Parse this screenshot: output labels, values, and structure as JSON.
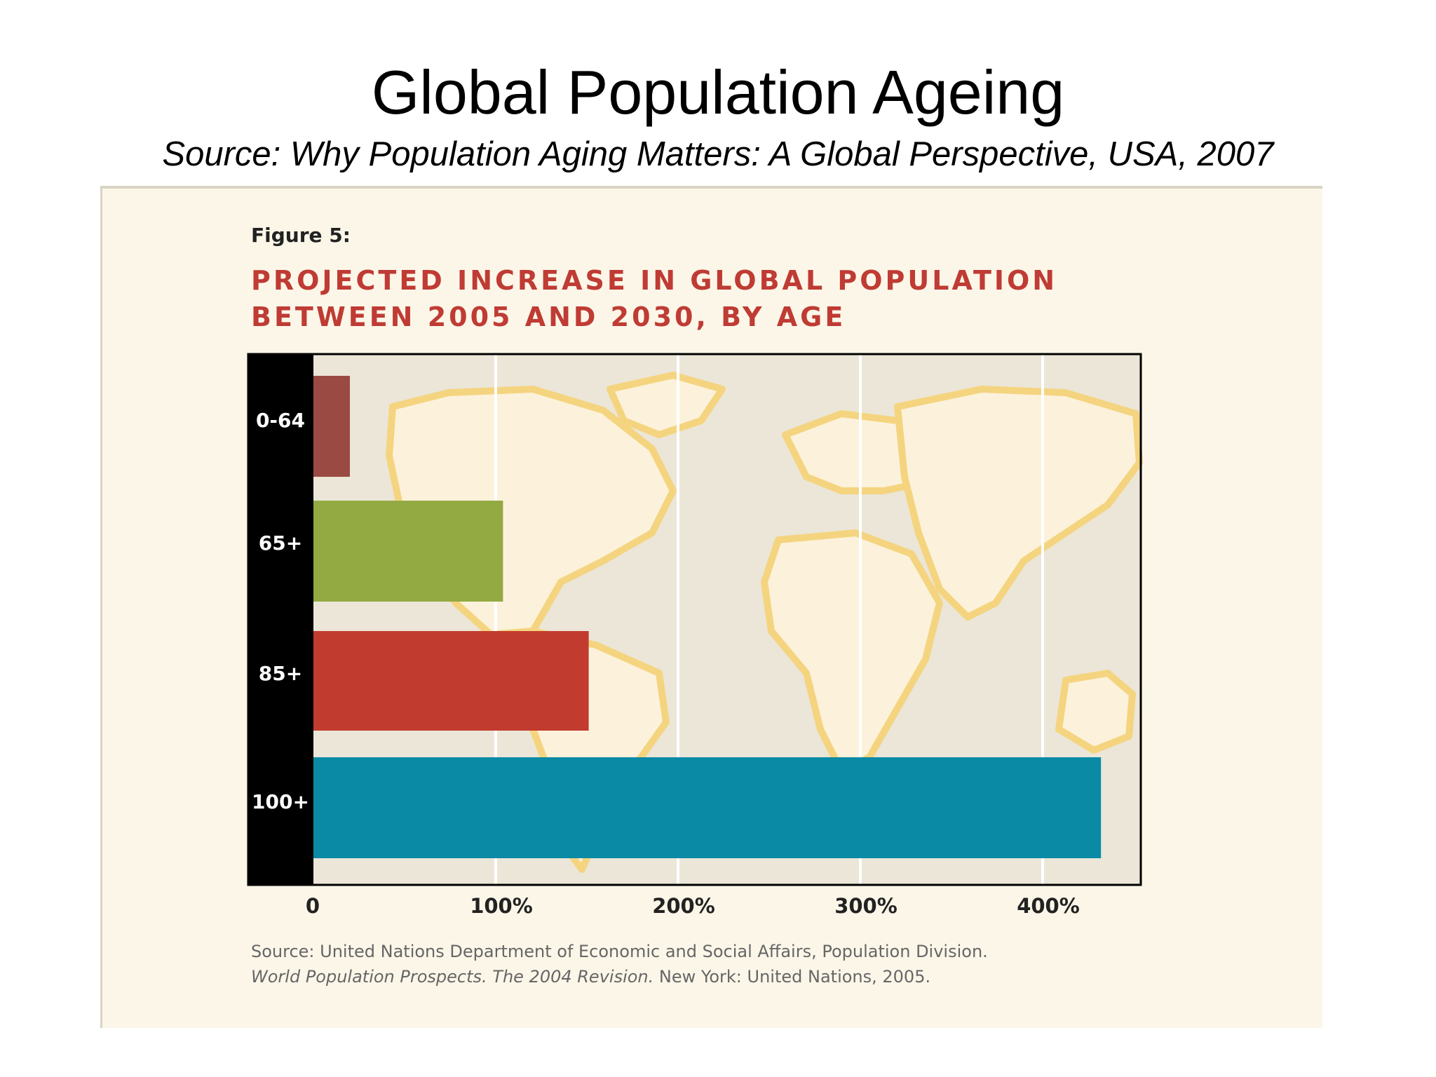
{
  "slide": {
    "title": "Global Population Ageing",
    "subtitle": "Source: Why Population Aging Matters: A Global Perspective, USA, 2007"
  },
  "figure": {
    "label": "Figure 5:",
    "title": "PROJECTED INCREASE IN GLOBAL POPULATION BETWEEN 2005 AND 2030, BY AGE",
    "source_line1": "Source: United Nations Department of Economic and Social Affairs, Population Division.",
    "source_line2_italic": "World Population Prospects. The 2004 Revision.",
    "source_line2_rest": " New York: United Nations, 2005."
  },
  "chart_data": {
    "type": "bar",
    "orientation": "horizontal",
    "title": "PROJECTED INCREASE IN GLOBAL POPULATION BETWEEN 2005 AND 2030, BY AGE",
    "categories": [
      "0-64",
      "65+",
      "85+",
      "100+"
    ],
    "values": [
      20,
      104,
      151,
      432
    ],
    "unit": "%",
    "xlim": [
      0,
      450
    ],
    "x_ticks": [
      0,
      100,
      200,
      300,
      400
    ],
    "x_tick_labels": [
      "0",
      "100%",
      "200%",
      "300%",
      "400%"
    ],
    "colors": [
      "#9b4a43",
      "#93aa42",
      "#c23b2f",
      "#0b8aa6"
    ],
    "grid": true,
    "background": "world map"
  }
}
